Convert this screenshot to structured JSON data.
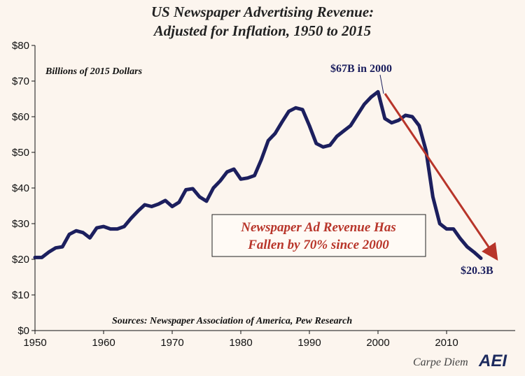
{
  "title": {
    "line1": "US Newspaper Advertising Revenue:",
    "line2": "Adjusted for Inflation, 1950 to 2015"
  },
  "chart_data": {
    "type": "line",
    "title": "US Newspaper Advertising Revenue: Adjusted for Inflation, 1950 to 2015",
    "units_label": "Billions of 2015 Dollars",
    "xlim": [
      1950,
      2020
    ],
    "ylim": [
      0,
      80
    ],
    "x_ticks": [
      1950,
      1960,
      1970,
      1980,
      1990,
      2000,
      2010
    ],
    "y_ticks": [
      0,
      10,
      20,
      30,
      40,
      50,
      60,
      70,
      80
    ],
    "y_tick_labels": [
      "$0",
      "$10",
      "$20",
      "$30",
      "$40",
      "$50",
      "$60",
      "$70",
      "$80"
    ],
    "grid": false,
    "legend": "none",
    "colors": {
      "line": "#1c1f5e",
      "trend_arrow": "#b8352a",
      "callout_text": "#b8352a",
      "background": "#fcf5ee"
    },
    "series": [
      {
        "x": [
          1950,
          1951,
          1952,
          1953,
          1954,
          1955,
          1956,
          1957,
          1958,
          1959,
          1960,
          1961,
          1962,
          1963,
          1964,
          1965,
          1966,
          1967,
          1968,
          1969,
          1970,
          1971,
          1972,
          1973,
          1974,
          1975,
          1976,
          1977,
          1978,
          1979,
          1980,
          1981,
          1982,
          1983,
          1984,
          1985,
          1986,
          1987,
          1988,
          1989,
          1990,
          1991,
          1992,
          1993,
          1994,
          1995,
          1996,
          1997,
          1998,
          1999,
          2000,
          2001,
          2002,
          2003,
          2004,
          2005,
          2006,
          2007,
          2008,
          2009,
          2010,
          2011,
          2012,
          2013,
          2014,
          2015
        ],
        "y": [
          20.5,
          20.5,
          22.0,
          23.2,
          23.5,
          27.0,
          28.0,
          27.5,
          26.0,
          28.8,
          29.2,
          28.5,
          28.5,
          29.2,
          31.5,
          33.5,
          35.3,
          34.8,
          35.5,
          36.5,
          34.8,
          36.0,
          39.5,
          39.8,
          37.5,
          36.3,
          40.0,
          42.0,
          44.5,
          45.3,
          42.5,
          42.8,
          43.5,
          48.0,
          53.3,
          55.3,
          58.5,
          61.5,
          62.5,
          62.0,
          57.5,
          52.5,
          51.5,
          52.0,
          54.5,
          56.0,
          57.5,
          60.5,
          63.5,
          65.5,
          67.0,
          59.5,
          58.3,
          59.0,
          60.4,
          60.0,
          57.5,
          50.5,
          37.5,
          30.0,
          28.5,
          28.5,
          25.8,
          23.5,
          22.0,
          20.3
        ]
      }
    ],
    "annotations": {
      "peak": "$67B in 2000",
      "end": "$20.3B",
      "callout_line1": "Newspaper Ad Revenue Has",
      "callout_line2": "Fallen by 70% since 2000",
      "sources": "Sources: Newspaper Association of America, Pew Research"
    }
  },
  "branding": {
    "carpe_diem": "Carpe Diem",
    "logo": "AEI"
  }
}
